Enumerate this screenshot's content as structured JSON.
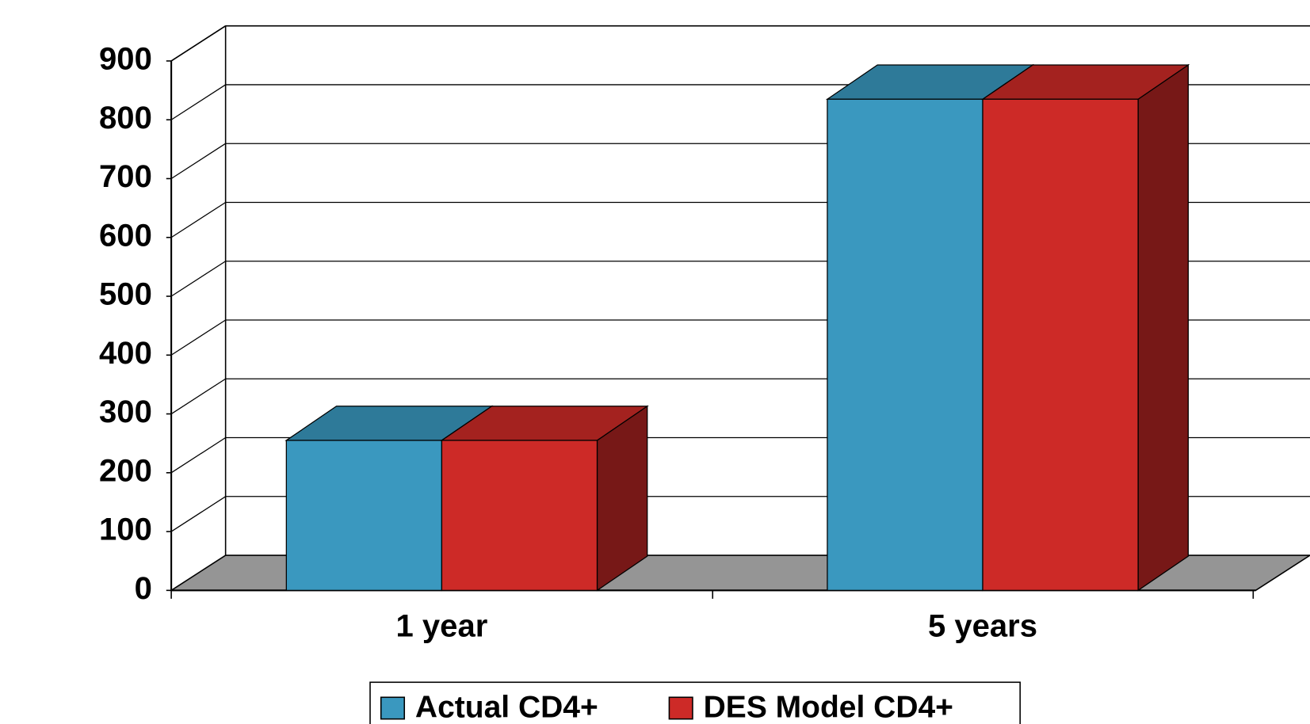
{
  "chart_data": {
    "type": "bar3d",
    "categories": [
      "1 year",
      "5 years"
    ],
    "series": [
      {
        "name": "Actual CD4+",
        "color": "#3a98bf",
        "values": [
          255,
          835
        ]
      },
      {
        "name": "DES Model CD4+",
        "color": "#cd2a27",
        "values": [
          255,
          835
        ]
      }
    ],
    "ylim": [
      0,
      900
    ],
    "yticks": [
      0,
      100,
      200,
      300,
      400,
      500,
      600,
      700,
      800,
      900
    ],
    "grid": true,
    "legend": "bottom"
  }
}
